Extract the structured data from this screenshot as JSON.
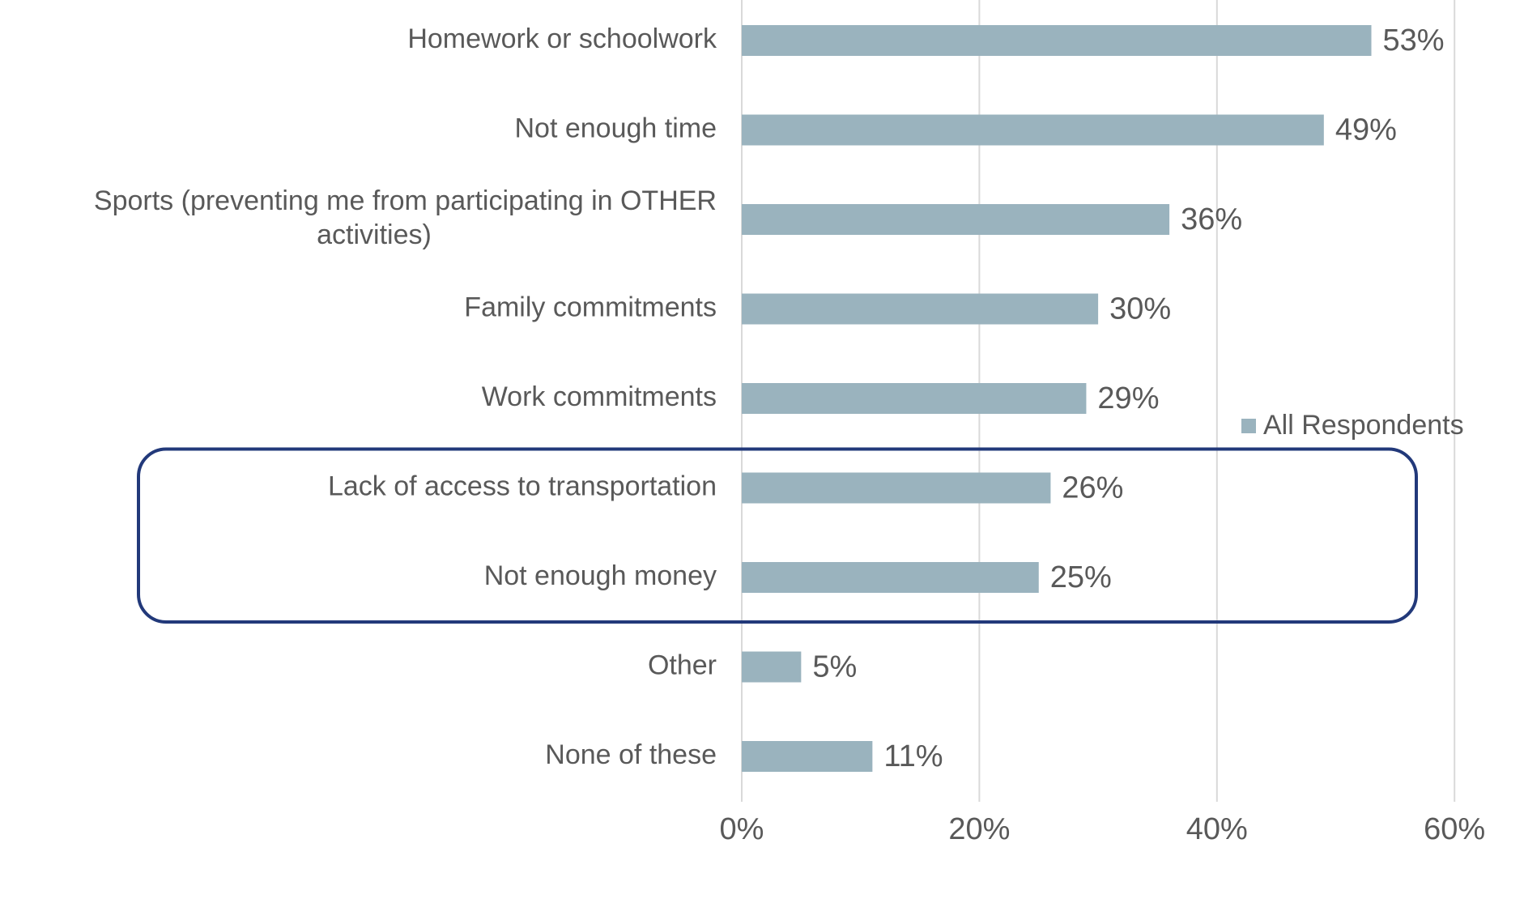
{
  "chart_data": {
    "type": "bar",
    "orientation": "horizontal",
    "title": "",
    "xlabel": "",
    "ylabel": "",
    "categories": [
      [
        "Homework or schoolwork"
      ],
      [
        "Not enough time"
      ],
      [
        "Sports (preventing me from participating in OTHER",
        "activities)"
      ],
      [
        "Family commitments"
      ],
      [
        "Work commitments"
      ],
      [
        "Lack of access to transportation"
      ],
      [
        "Not enough money"
      ],
      [
        "Other"
      ],
      [
        "None of these"
      ]
    ],
    "series": [
      {
        "name": "All Respondents",
        "color": "#9ab3be",
        "values": [
          53,
          49,
          36,
          30,
          29,
          26,
          25,
          5,
          11
        ]
      }
    ],
    "value_labels": [
      "53%",
      "49%",
      "36%",
      "30%",
      "29%",
      "26%",
      "25%",
      "5%",
      "11%"
    ],
    "xlim": [
      0,
      60
    ],
    "xticks": [
      0,
      20,
      40,
      60
    ],
    "xtick_labels": [
      "0%",
      "20%",
      "40%",
      "60%"
    ],
    "grid": "vertical",
    "legend_position": "right",
    "highlight": {
      "categories": [
        "Lack of access to transportation",
        "Not enough money"
      ],
      "color": "#22397a"
    },
    "gridline_color": "#d9d9d9"
  }
}
